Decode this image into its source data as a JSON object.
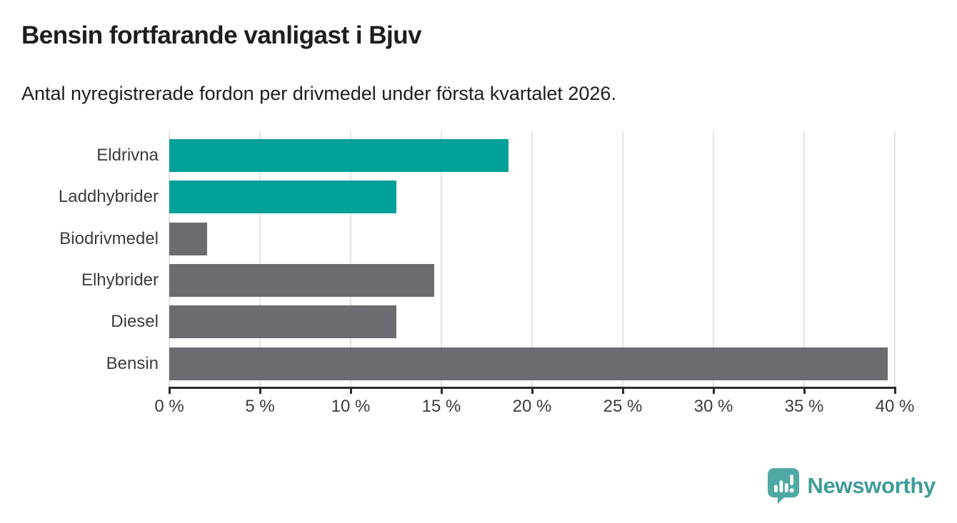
{
  "header": {
    "title": "Bensin fortfarande vanligast i Bjuv",
    "subtitle": "Antal nyregistrerade fordon per drivmedel under första kvartalet 2026."
  },
  "chart_data": {
    "type": "bar",
    "orientation": "horizontal",
    "title": "Bensin fortfarande vanligast i Bjuv",
    "subtitle": "Antal nyregistrerade fordon per drivmedel under första kvartalet 2026.",
    "categories": [
      "Eldrivna",
      "Laddhybrider",
      "Biodrivmedel",
      "Elhybrider",
      "Diesel",
      "Bensin"
    ],
    "values": [
      18.7,
      12.5,
      2.1,
      14.6,
      12.5,
      39.6
    ],
    "unit": "%",
    "xlabel": "",
    "ylabel": "",
    "xlim": [
      0,
      40
    ],
    "ticks": [
      0,
      5,
      10,
      15,
      20,
      25,
      30,
      35,
      40
    ],
    "tick_labels": [
      "0 %",
      "5 %",
      "10 %",
      "15 %",
      "20 %",
      "25 %",
      "30 %",
      "35 %",
      "40 %"
    ],
    "grid": "vertical gridlines on, behind bars",
    "legend": "none",
    "bar_emphasis": [
      true,
      true,
      false,
      false,
      false,
      false
    ],
    "colors": {
      "emphasis_bar": "#00A199",
      "default_bar": "#6B6B71",
      "gridline": "#E3E3E5",
      "axis": "#2B2B2B",
      "heading_text": "#1D1D1B",
      "label_text": "#3C3C3B"
    }
  },
  "branding": {
    "logo_text": "Newsworthy",
    "logo_text_color": "#3E9C99",
    "logo_icon": "bar-chart-speech-bubble-icon",
    "logo_icon_color": "#4FA8A4"
  }
}
